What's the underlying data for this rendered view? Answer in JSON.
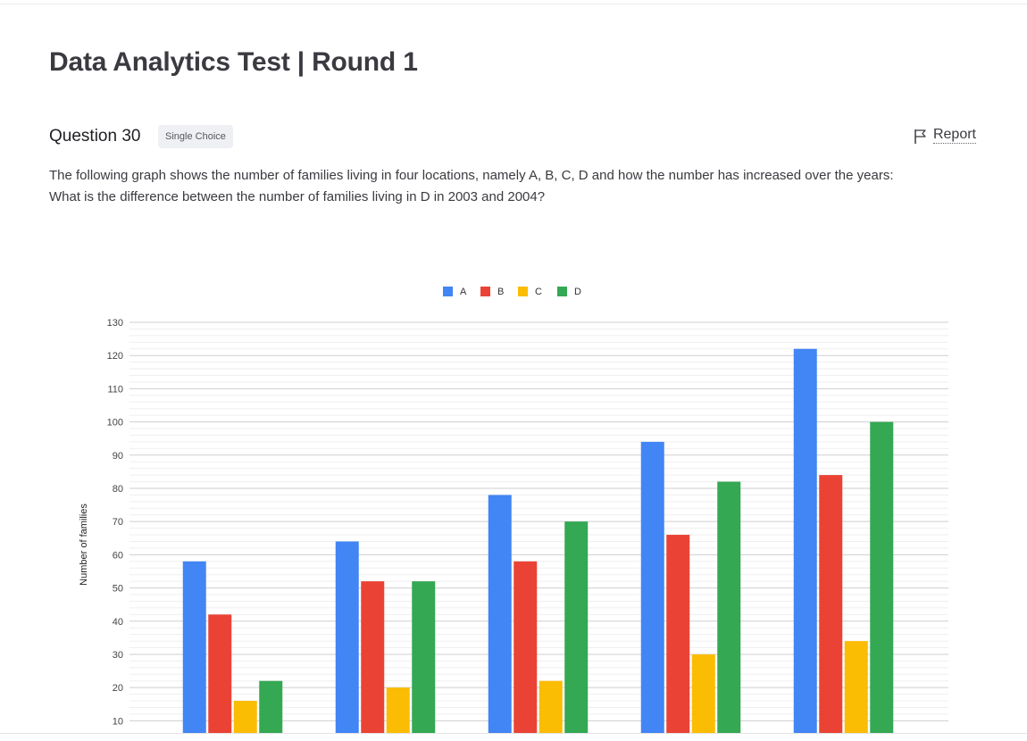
{
  "header": {
    "title": "Data Analytics Test | Round 1"
  },
  "question": {
    "number_label": "Question 30",
    "type_badge": "Single Choice",
    "report_label": "Report",
    "report_icon": "flag-icon",
    "lines": [
      "The following graph shows the number of families living in four locations, namely A, B, C, D and how the number has increased over the years:",
      "What is the difference between the number of families living in D in 2003 and 2004?"
    ]
  },
  "chart_data": {
    "type": "bar",
    "categories": [
      "",
      "",
      "",
      "",
      ""
    ],
    "series": [
      {
        "name": "A",
        "color": "#4285F4",
        "values": [
          58,
          64,
          78,
          94,
          122
        ]
      },
      {
        "name": "B",
        "color": "#EA4335",
        "values": [
          42,
          52,
          58,
          66,
          84
        ]
      },
      {
        "name": "C",
        "color": "#FBBC04",
        "values": [
          16,
          20,
          22,
          30,
          34
        ]
      },
      {
        "name": "D",
        "color": "#34A853",
        "values": [
          22,
          52,
          70,
          82,
          100
        ]
      }
    ],
    "ylabel": "Number of families",
    "yticks": [
      10,
      20,
      30,
      40,
      50,
      60,
      70,
      80,
      90,
      100,
      110,
      120,
      130
    ],
    "ylim": [
      0,
      130
    ],
    "grid": true,
    "legend": "top"
  }
}
